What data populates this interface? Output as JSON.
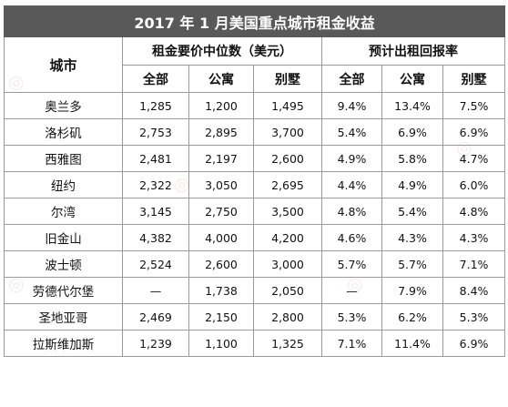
{
  "title": "2017 年 1 月美国重点城市租金收益",
  "headers": {
    "city": "城市",
    "rent_group": "租金要价中位数（美元）",
    "yield_group": "预计出租回报率",
    "sub": [
      "全部",
      "公寓",
      "别墅",
      "全部",
      "公寓",
      "别墅"
    ]
  },
  "rows": [
    {
      "city": "奥兰多",
      "cells": [
        "1,285",
        "1,200",
        "1,495",
        "9.4%",
        "13.4%",
        "7.5%"
      ]
    },
    {
      "city": "洛杉矶",
      "cells": [
        "2,753",
        "2,895",
        "3,700",
        "5.4%",
        "6.9%",
        "6.9%"
      ]
    },
    {
      "city": "西雅图",
      "cells": [
        "2,481",
        "2,197",
        "2,600",
        "4.9%",
        "5.8%",
        "4.7%"
      ]
    },
    {
      "city": "纽约",
      "cells": [
        "2,322",
        "3,050",
        "2,695",
        "4.4%",
        "4.9%",
        "6.0%"
      ]
    },
    {
      "city": "尔湾",
      "cells": [
        "3,145",
        "2,750",
        "3,500",
        "4.8%",
        "5.4%",
        "4.8%"
      ]
    },
    {
      "city": "旧金山",
      "cells": [
        "4,382",
        "4,000",
        "4,200",
        "4.6%",
        "4.3%",
        "4.3%"
      ]
    },
    {
      "city": "波士顿",
      "cells": [
        "2,524",
        "2,600",
        "3,000",
        "5.7%",
        "5.7%",
        "7.1%"
      ]
    },
    {
      "city": "劳德代尔堡",
      "cells": [
        "—",
        "1,738",
        "2,050",
        "—",
        "7.9%",
        "8.4%"
      ]
    },
    {
      "city": "圣地亚哥",
      "cells": [
        "2,469",
        "2,150",
        "2,800",
        "5.3%",
        "6.2%",
        "5.3%"
      ]
    },
    {
      "city": "拉斯维加斯",
      "cells": [
        "1,239",
        "1,100",
        "1,325",
        "7.1%",
        "11.4%",
        "6.9%"
      ]
    }
  ]
}
